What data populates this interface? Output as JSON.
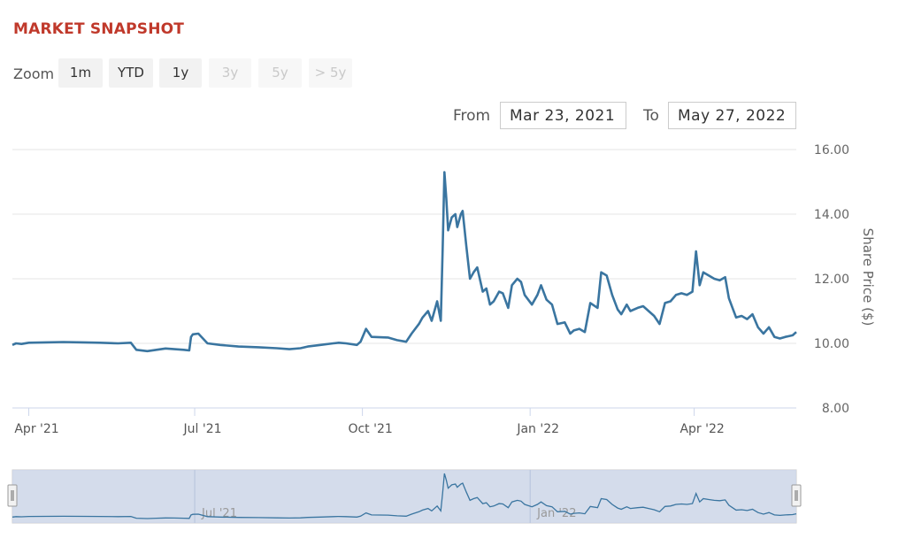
{
  "header": {
    "title": "MARKET SNAPSHOT"
  },
  "zoom": {
    "label": "Zoom",
    "buttons": [
      {
        "label": "1m",
        "enabled": true
      },
      {
        "label": "YTD",
        "enabled": true
      },
      {
        "label": "1y",
        "enabled": true
      },
      {
        "label": "3y",
        "enabled": false
      },
      {
        "label": "5y",
        "enabled": false
      },
      {
        "label": "> 5y",
        "enabled": false
      }
    ]
  },
  "range": {
    "from_label": "From",
    "from_value": "Mar 23, 2021",
    "to_label": "To",
    "to_value": "May 27, 2022"
  },
  "colors": {
    "line": "#3a75a0",
    "navigator_fill": "#ccd6e8",
    "grid": "#e6e6e6",
    "title": "#c0392b"
  },
  "chart_data": {
    "type": "line",
    "ylabel": "Share Price ($)",
    "ylim": [
      8,
      16
    ],
    "yticks": [
      "8.00",
      "10.00",
      "12.00",
      "14.00",
      "16.00"
    ],
    "xlim": [
      "2021-03-23",
      "2022-05-27"
    ],
    "xticks": [
      {
        "label": "Apr '21",
        "date": "2021-04-01"
      },
      {
        "label": "Jul '21",
        "date": "2021-07-01"
      },
      {
        "label": "Oct '21",
        "date": "2021-10-01"
      },
      {
        "label": "Jan '22",
        "date": "2022-01-01"
      },
      {
        "label": "Apr '22",
        "date": "2022-04-01"
      }
    ],
    "navigator_labels": [
      {
        "label": "Jul '21",
        "date": "2021-07-01"
      },
      {
        "label": "Jan '22",
        "date": "2022-01-01"
      }
    ],
    "grid": true,
    "series": [
      {
        "x": [
          "2021-03-23",
          "2021-03-25",
          "2021-03-28",
          "2021-04-01",
          "2021-04-10",
          "2021-04-20",
          "2021-05-01",
          "2021-05-10",
          "2021-05-20",
          "2021-05-27",
          "2021-05-30",
          "2021-06-05",
          "2021-06-10",
          "2021-06-15",
          "2021-06-20",
          "2021-06-25",
          "2021-06-28",
          "2021-06-29",
          "2021-06-30",
          "2021-07-03",
          "2021-07-08",
          "2021-07-15",
          "2021-07-25",
          "2021-08-05",
          "2021-08-15",
          "2021-08-22",
          "2021-08-28",
          "2021-09-01",
          "2021-09-08",
          "2021-09-15",
          "2021-09-18",
          "2021-09-22",
          "2021-09-28",
          "2021-09-30",
          "2021-10-03",
          "2021-10-06",
          "2021-10-15",
          "2021-10-20",
          "2021-10-25",
          "2021-10-28",
          "2021-11-01",
          "2021-11-03",
          "2021-11-06",
          "2021-11-08",
          "2021-11-11",
          "2021-11-13",
          "2021-11-14",
          "2021-11-15",
          "2021-11-16",
          "2021-11-17",
          "2021-11-19",
          "2021-11-21",
          "2021-11-22",
          "2021-11-24",
          "2021-11-25",
          "2021-11-27",
          "2021-11-29",
          "2021-12-01",
          "2021-12-03",
          "2021-12-06",
          "2021-12-08",
          "2021-12-10",
          "2021-12-12",
          "2021-12-15",
          "2021-12-17",
          "2021-12-20",
          "2021-12-22",
          "2021-12-25",
          "2021-12-27",
          "2021-12-29",
          "2022-01-02",
          "2022-01-05",
          "2022-01-07",
          "2022-01-10",
          "2022-01-13",
          "2022-01-16",
          "2022-01-20",
          "2022-01-23",
          "2022-01-25",
          "2022-01-28",
          "2022-01-31",
          "2022-02-03",
          "2022-02-07",
          "2022-02-09",
          "2022-02-12",
          "2022-02-15",
          "2022-02-18",
          "2022-02-20",
          "2022-02-23",
          "2022-02-25",
          "2022-03-01",
          "2022-03-04",
          "2022-03-07",
          "2022-03-10",
          "2022-03-13",
          "2022-03-16",
          "2022-03-19",
          "2022-03-22",
          "2022-03-25",
          "2022-03-28",
          "2022-03-31",
          "2022-04-02",
          "2022-04-04",
          "2022-04-06",
          "2022-04-09",
          "2022-04-12",
          "2022-04-15",
          "2022-04-18",
          "2022-04-20",
          "2022-04-22",
          "2022-04-24",
          "2022-04-27",
          "2022-04-30",
          "2022-05-03",
          "2022-05-06",
          "2022-05-09",
          "2022-05-12",
          "2022-05-15",
          "2022-05-18",
          "2022-05-21",
          "2022-05-25",
          "2022-05-27"
        ],
        "values": [
          9.95,
          10.0,
          9.98,
          10.02,
          10.03,
          10.04,
          10.03,
          10.02,
          10.0,
          10.02,
          9.8,
          9.76,
          9.8,
          9.84,
          9.82,
          9.8,
          9.78,
          10.2,
          10.28,
          10.3,
          10.0,
          9.95,
          9.9,
          9.88,
          9.85,
          9.82,
          9.85,
          9.9,
          9.95,
          10.0,
          10.02,
          10.0,
          9.95,
          10.05,
          10.45,
          10.2,
          10.18,
          10.1,
          10.05,
          10.3,
          10.6,
          10.8,
          11.0,
          10.7,
          11.3,
          10.7,
          12.9,
          15.3,
          14.5,
          13.5,
          13.9,
          14.0,
          13.6,
          14.0,
          14.1,
          13.0,
          12.0,
          12.2,
          12.35,
          11.6,
          11.7,
          11.2,
          11.3,
          11.6,
          11.55,
          11.1,
          11.8,
          12.0,
          11.9,
          11.5,
          11.2,
          11.5,
          11.8,
          11.35,
          11.2,
          10.6,
          10.65,
          10.3,
          10.4,
          10.45,
          10.35,
          11.25,
          11.1,
          12.2,
          12.1,
          11.5,
          11.05,
          10.9,
          11.2,
          11.0,
          11.1,
          11.15,
          11.0,
          10.85,
          10.6,
          11.25,
          11.3,
          11.5,
          11.55,
          11.5,
          11.6,
          12.85,
          11.8,
          12.2,
          12.1,
          12.0,
          11.95,
          12.05,
          11.4,
          11.1,
          10.8,
          10.85,
          10.75,
          10.9,
          10.5,
          10.3,
          10.5,
          10.2,
          10.15,
          10.2,
          10.25,
          10.35
        ]
      }
    ]
  }
}
